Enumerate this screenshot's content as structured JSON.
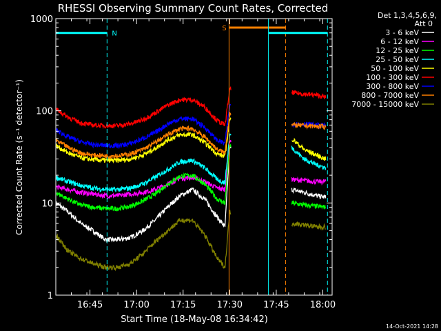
{
  "chart_data": {
    "type": "line",
    "title": "RHESSI Observing Summary Count Rates, Corrected",
    "xlabel": "Start Time (18-May-08 16:34:42)",
    "ylabel": "Corrected Count Rate (s⁻¹ detector⁻¹)",
    "y_scale": "log",
    "ylim": [
      1,
      1000
    ],
    "xlim_minutes_after_1634": [
      0,
      89
    ],
    "x_ticks": [
      "16:45",
      "17:00",
      "17:15",
      "17:30",
      "17:45",
      "18:00"
    ],
    "x_tick_minutes": [
      11,
      26,
      41,
      56,
      71,
      86
    ],
    "y_tick_labels": [
      "1",
      "10",
      "100",
      "1000"
    ],
    "y_tick_values": [
      1,
      10,
      100,
      1000
    ],
    "legend_header": [
      "Det 1,3,4,5,6,9,",
      "Att 0"
    ],
    "legend_position": "right",
    "timestamp": "14-Oct-2021 14:28",
    "flags": [
      {
        "label": "N",
        "color": "#00ffff",
        "start": 0,
        "end": 16.5,
        "level": 700
      },
      {
        "label": "S",
        "color": "#ff8000",
        "start": 55.8,
        "end": 74,
        "level": 800
      },
      {
        "label": "",
        "color": "#00ffff",
        "start": 68.5,
        "end": 87.5,
        "level": 700
      }
    ],
    "data_gaps": [
      [
        56.5,
        76
      ]
    ],
    "series": [
      {
        "name": "3 - 6 keV",
        "color": "#ffffff",
        "x": [
          0,
          4,
          8,
          12,
          16,
          20,
          24,
          28,
          32,
          36,
          40,
          44,
          48,
          52,
          54.5,
          56,
          76,
          80,
          84,
          87
        ],
        "y": [
          10,
          8,
          6,
          5,
          4,
          4,
          4.2,
          5,
          6.5,
          9,
          12,
          14,
          11,
          7,
          5.5,
          40,
          14,
          13,
          12,
          11.5
        ]
      },
      {
        "name": "6 - 12 keV",
        "color": "#ff00ff",
        "x": [
          0,
          4,
          8,
          12,
          16,
          20,
          24,
          28,
          32,
          36,
          40,
          44,
          48,
          52,
          54.5,
          56,
          76,
          80,
          84,
          87
        ],
        "y": [
          15,
          14,
          13,
          12.5,
          12,
          12,
          12.5,
          13,
          14,
          16,
          18.5,
          19,
          17,
          14.5,
          14,
          48,
          18,
          17.5,
          17,
          17
        ]
      },
      {
        "name": "12 - 25 keV",
        "color": "#00ff00",
        "x": [
          0,
          4,
          8,
          12,
          16,
          20,
          24,
          28,
          32,
          36,
          40,
          44,
          48,
          52,
          54.5,
          56,
          76,
          80,
          84,
          87
        ],
        "y": [
          13,
          11,
          9.5,
          9,
          8.7,
          8.7,
          9.2,
          10.5,
          12.5,
          16,
          19.5,
          20,
          16,
          11,
          10,
          42,
          10,
          9.5,
          9.2,
          9
        ]
      },
      {
        "name": "25 - 50 keV",
        "color": "#00ffff",
        "x": [
          0,
          4,
          8,
          12,
          16,
          20,
          24,
          28,
          32,
          36,
          40,
          44,
          48,
          52,
          54.5,
          56,
          76,
          80,
          84,
          87
        ],
        "y": [
          19,
          17,
          15.5,
          14.5,
          14,
          14,
          14.5,
          16,
          19,
          23,
          28,
          29,
          24,
          18,
          16.5,
          55,
          40,
          30,
          26,
          24
        ]
      },
      {
        "name": "50 - 100 keV",
        "color": "#ffff00",
        "x": [
          0,
          4,
          8,
          12,
          16,
          20,
          24,
          28,
          32,
          36,
          40,
          44,
          48,
          52,
          54.5,
          56,
          76,
          80,
          84,
          87
        ],
        "y": [
          42,
          35,
          31,
          29.5,
          29,
          29,
          30,
          33,
          39,
          48,
          55,
          55,
          45,
          34,
          32,
          80,
          50,
          38,
          33,
          30
        ]
      },
      {
        "name": "100 - 300 keV",
        "color": "#ff0000",
        "x": [
          0,
          4,
          8,
          12,
          16,
          20,
          24,
          28,
          32,
          36,
          40,
          44,
          48,
          52,
          54.5,
          56,
          76,
          80,
          84,
          87
        ],
        "y": [
          105,
          85,
          74,
          70,
          69,
          69,
          72,
          80,
          95,
          115,
          132,
          132,
          110,
          78,
          70,
          170,
          158,
          152,
          148,
          140
        ]
      },
      {
        "name": "300 - 800 keV",
        "color": "#0000ff",
        "x": [
          0,
          4,
          8,
          12,
          16,
          20,
          24,
          28,
          32,
          36,
          40,
          44,
          48,
          52,
          54.5,
          56,
          76,
          80,
          84,
          87
        ],
        "y": [
          62,
          52,
          46,
          43,
          42,
          42,
          44,
          50,
          58,
          72,
          82,
          82,
          66,
          48,
          44,
          115,
          72,
          72,
          70,
          69
        ]
      },
      {
        "name": "800 - 7000 keV",
        "color": "#ff8000",
        "x": [
          0,
          4,
          8,
          12,
          16,
          20,
          24,
          28,
          32,
          36,
          40,
          44,
          48,
          52,
          54.5,
          56,
          76,
          80,
          84,
          87
        ],
        "y": [
          48,
          40,
          35,
          33,
          32.5,
          32.5,
          34,
          38,
          45,
          55,
          64,
          64,
          52,
          38,
          35,
          95,
          70,
          69,
          68,
          67
        ]
      },
      {
        "name": "7000 - 15000 keV",
        "color": "#808000",
        "x": [
          0,
          4,
          8,
          12,
          16,
          20,
          24,
          28,
          32,
          36,
          40,
          44,
          48,
          52,
          54.5,
          56,
          76,
          80,
          84,
          87
        ],
        "y": [
          4.5,
          3,
          2.5,
          2.2,
          2,
          2,
          2.2,
          2.8,
          3.8,
          5,
          6.5,
          6.5,
          4.5,
          2.5,
          2,
          8,
          6,
          5.8,
          5.5,
          5.5
        ]
      }
    ]
  }
}
